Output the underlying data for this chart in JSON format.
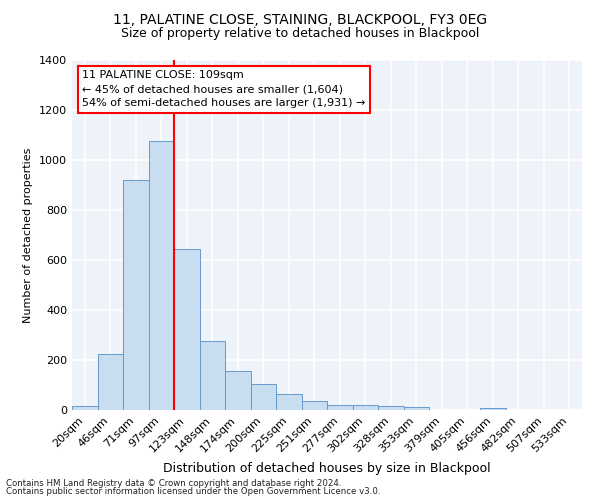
{
  "title1": "11, PALATINE CLOSE, STAINING, BLACKPOOL, FY3 0EG",
  "title2": "Size of property relative to detached houses in Blackpool",
  "xlabel": "Distribution of detached houses by size in Blackpool",
  "ylabel": "Number of detached properties",
  "footnote1": "Contains HM Land Registry data © Crown copyright and database right 2024.",
  "footnote2": "Contains public sector information licensed under the Open Government Licence v3.0.",
  "bar_labels": [
    "20sqm",
    "46sqm",
    "71sqm",
    "97sqm",
    "123sqm",
    "148sqm",
    "174sqm",
    "200sqm",
    "225sqm",
    "251sqm",
    "277sqm",
    "302sqm",
    "328sqm",
    "353sqm",
    "379sqm",
    "405sqm",
    "456sqm",
    "482sqm",
    "507sqm",
    "533sqm"
  ],
  "bar_values": [
    15,
    225,
    920,
    1075,
    645,
    275,
    155,
    105,
    65,
    35,
    20,
    20,
    15,
    12,
    0,
    0,
    10,
    0,
    0,
    0
  ],
  "bar_color": "#c9ddf0",
  "bar_edge_color": "#6699cc",
  "vline_index": 3.5,
  "vline_color": "red",
  "annotation_text": "11 PALATINE CLOSE: 109sqm\n← 45% of detached houses are smaller (1,604)\n54% of semi-detached houses are larger (1,931) →",
  "annotation_box_color": "white",
  "annotation_box_edge": "red",
  "ylim": [
    0,
    1400
  ],
  "yticks": [
    0,
    200,
    400,
    600,
    800,
    1000,
    1200,
    1400
  ],
  "bg_color": "#eef2f9",
  "grid_color": "white",
  "title_fontsize": 10,
  "subtitle_fontsize": 9,
  "ylabel_fontsize": 8,
  "xlabel_fontsize": 9,
  "tick_fontsize": 8,
  "annot_fontsize": 8
}
